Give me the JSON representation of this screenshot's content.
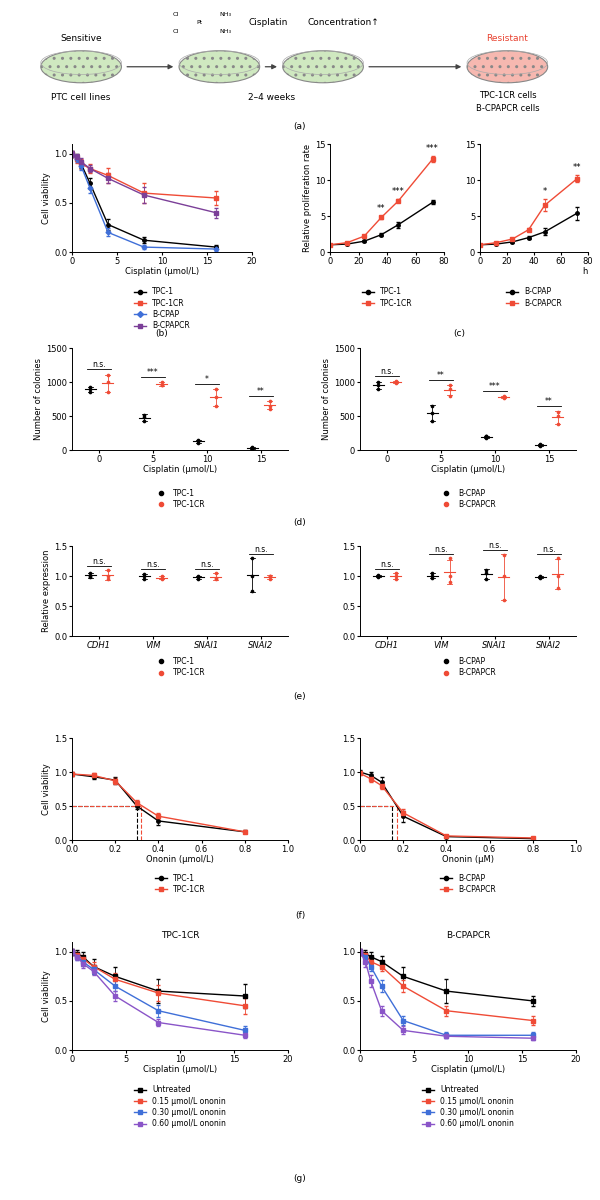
{
  "panel_labels": [
    "(a)",
    "(b)",
    "(c)",
    "(d)",
    "(e)",
    "(f)",
    "(g)"
  ],
  "diagram": {
    "sensitive": "Sensitive",
    "source": "PTC cell lines",
    "drug_atoms": [
      "Cl",
      "Cl",
      "Pt",
      "NH₃",
      "NH₃"
    ],
    "drug": "Cisplatin",
    "dose": "Concentration↑",
    "duration": "2–4 weeks",
    "resistant": "Resistant",
    "resistant_lines": [
      "TPC-1CR cells",
      "B-CPAPCR cells"
    ]
  },
  "chart_data": [
    {
      "type": "line",
      "xlabel": "Cisplatin (μmol/L)",
      "ylabel": "Cell viability",
      "x": [
        0,
        0.5,
        1,
        2,
        4,
        8,
        16
      ],
      "xlim": [
        0,
        20
      ],
      "xticks": [
        0,
        5,
        10,
        15,
        20
      ],
      "ylim": [
        0,
        1.1
      ],
      "yticks": [
        {
          "value": 0,
          "label": "0.0"
        },
        {
          "value": 0.5,
          "label": "0.5"
        },
        {
          "value": 1,
          "label": "1.0"
        }
      ],
      "legend": "below",
      "series": [
        {
          "name": "TPC-1",
          "color": "#000000",
          "marker": "circle",
          "values": [
            1.0,
            0.97,
            0.9,
            0.7,
            0.28,
            0.12,
            0.05
          ],
          "errors": [
            0.03,
            0.03,
            0.04,
            0.05,
            0.06,
            0.03,
            0.02
          ]
        },
        {
          "name": "TPC-1CR",
          "color": "#ef4b36",
          "marker": "square",
          "values": [
            1.0,
            0.95,
            0.9,
            0.85,
            0.78,
            0.6,
            0.55
          ],
          "errors": [
            0.03,
            0.04,
            0.05,
            0.05,
            0.08,
            0.1,
            0.07
          ]
        },
        {
          "name": "B-CPAP",
          "color": "#3f6fd8",
          "marker": "diamond",
          "values": [
            1.0,
            0.95,
            0.88,
            0.65,
            0.2,
            0.05,
            0.03
          ],
          "errors": [
            0.03,
            0.03,
            0.04,
            0.05,
            0.04,
            0.02,
            0.02
          ]
        },
        {
          "name": "B-CPAPCR",
          "color": "#7b3f98",
          "marker": "square",
          "values": [
            1.0,
            0.97,
            0.92,
            0.85,
            0.75,
            0.58,
            0.4
          ],
          "errors": [
            0.03,
            0.03,
            0.04,
            0.04,
            0.05,
            0.08,
            0.05
          ]
        }
      ]
    },
    {
      "type": "line",
      "ylabel": "Relative proliferation rate",
      "x": [
        0,
        12,
        24,
        36,
        48,
        72
      ],
      "xlim": [
        0,
        80
      ],
      "xticks": [
        0,
        20,
        40,
        60,
        80
      ],
      "ylim": [
        0,
        15
      ],
      "yticks": [
        0,
        5,
        10,
        15
      ],
      "legend": "below",
      "series": [
        {
          "name": "TPC-1",
          "color": "#000000",
          "marker": "circle",
          "values": [
            1.0,
            1.1,
            1.5,
            2.4,
            3.8,
            6.9
          ],
          "errors": [
            0.05,
            0.1,
            0.15,
            0.2,
            0.4,
            0.3
          ]
        },
        {
          "name": "TPC-1CR",
          "color": "#ef4b36",
          "marker": "square",
          "values": [
            1.0,
            1.3,
            2.2,
            4.8,
            7.1,
            12.9
          ],
          "errors": [
            0.05,
            0.1,
            0.15,
            0.2,
            0.2,
            0.4
          ]
        }
      ],
      "annotations": [
        {
          "x": 36,
          "text": "**"
        },
        {
          "x": 48,
          "text": "***"
        },
        {
          "x": 72,
          "text": "***"
        }
      ]
    },
    {
      "type": "line",
      "xlabel": "h",
      "x": [
        0,
        12,
        24,
        36,
        48,
        72
      ],
      "xlim": [
        0,
        80
      ],
      "xticks": [
        0,
        20,
        40,
        60,
        80
      ],
      "ylim": [
        0,
        15
      ],
      "yticks": [
        0,
        5,
        10,
        15
      ],
      "legend": "below",
      "series": [
        {
          "name": "B-CPAP",
          "color": "#000000",
          "marker": "circle",
          "values": [
            1.0,
            1.1,
            1.4,
            2.0,
            2.8,
            5.4
          ],
          "errors": [
            0.05,
            0.1,
            0.15,
            0.2,
            0.5,
            0.9
          ]
        },
        {
          "name": "B-CPAPCR",
          "color": "#ef4b36",
          "marker": "square",
          "values": [
            1.0,
            1.3,
            1.8,
            3.1,
            6.5,
            10.2
          ],
          "errors": [
            0.05,
            0.1,
            0.15,
            0.2,
            0.8,
            0.5
          ]
        }
      ],
      "annotations": [
        {
          "x": 48,
          "text": "*"
        },
        {
          "x": 72,
          "text": "**"
        }
      ]
    },
    {
      "type": "dot",
      "xlabel": "Cisplatin (μmol/L)",
      "ylabel": "Number of colonies",
      "categories": [
        "0",
        "5",
        "10",
        "15"
      ],
      "ylim": [
        0,
        1500
      ],
      "yticks": [
        0,
        500,
        1000,
        1500
      ],
      "legend": "below",
      "significance": [
        "n.s.",
        "***",
        "*",
        "**"
      ],
      "series": [
        {
          "name": "TPC-1",
          "color": "#000000",
          "points": [
            [
              850,
              920,
              900
            ],
            [
              420,
              520,
              480
            ],
            [
              100,
              130,
              150
            ],
            [
              20,
              40,
              30
            ]
          ]
        },
        {
          "name": "TPC-1CR",
          "color": "#ef4b36",
          "points": [
            [
              1000,
              850,
              1100
            ],
            [
              950,
              1000,
              960
            ],
            [
              650,
              780,
              900
            ],
            [
              600,
              650,
              720
            ]
          ]
        }
      ]
    },
    {
      "type": "dot",
      "xlabel": "Cisplatin (μmol/L)",
      "ylabel": "Number of colonies",
      "categories": [
        "0",
        "5",
        "10",
        "15"
      ],
      "ylim": [
        0,
        1500
      ],
      "yticks": [
        0,
        500,
        1000,
        1500
      ],
      "legend": "below",
      "significance": [
        "n.s.",
        "**",
        "***",
        "**"
      ],
      "series": [
        {
          "name": "B-CPAP",
          "color": "#000000",
          "points": [
            [
              1000,
              900,
              950
            ],
            [
              420,
              550,
              650
            ],
            [
              180,
              200,
              210
            ],
            [
              60,
              90,
              80
            ]
          ]
        },
        {
          "name": "B-CPAPCR",
          "color": "#ef4b36",
          "points": [
            [
              980,
              1000,
              1010
            ],
            [
              800,
              900,
              950
            ],
            [
              780,
              790,
              770
            ],
            [
              380,
              500,
              560
            ]
          ]
        }
      ]
    },
    {
      "type": "dot",
      "ylabel": "Relative expression",
      "categories": [
        "CDH1",
        "VIM",
        "SNAI1",
        "SNAI2"
      ],
      "ylim": [
        0,
        1.5
      ],
      "yticks": [
        {
          "value": 0,
          "label": "0.0"
        },
        {
          "value": 0.5,
          "label": "0.5"
        },
        {
          "value": 1,
          "label": "1.0"
        },
        {
          "value": 1.5,
          "label": "1.5"
        }
      ],
      "legend": "below",
      "significance": [
        "n.s.",
        "n.s.",
        "n.s.",
        "n.s."
      ],
      "series": [
        {
          "name": "TPC-1",
          "color": "#000000",
          "points": [
            [
              0.98,
              1.0,
              1.05
            ],
            [
              1.0,
              0.95,
              1.03
            ],
            [
              0.95,
              1.0,
              0.98
            ],
            [
              0.75,
              1.0,
              1.3
            ]
          ]
        },
        {
          "name": "TPC-1CR",
          "color": "#ef4b36",
          "points": [
            [
              0.95,
              1.0,
              1.1
            ],
            [
              0.97,
              0.95,
              1.0
            ],
            [
              0.97,
              1.05,
              0.95
            ],
            [
              0.95,
              1.0,
              1.0
            ]
          ]
        }
      ]
    },
    {
      "type": "dot",
      "categories": [
        "CDH1",
        "VIM",
        "SNAI1",
        "SNAI2"
      ],
      "ylim": [
        0,
        1.5
      ],
      "yticks": [
        {
          "value": 0,
          "label": "0.0"
        },
        {
          "value": 0.5,
          "label": "0.5"
        },
        {
          "value": 1,
          "label": "1.0"
        },
        {
          "value": 1.5,
          "label": "1.5"
        }
      ],
      "legend": "below",
      "significance": [
        "n.s.",
        "n.s.",
        "n.s.",
        "n.s."
      ],
      "series": [
        {
          "name": "B-CPAP",
          "color": "#000000",
          "points": [
            [
              1.0,
              1.02,
              0.99
            ],
            [
              1.0,
              1.05,
              0.97
            ],
            [
              1.1,
              0.95,
              1.05
            ],
            [
              0.97,
              1.0,
              0.99
            ]
          ]
        },
        {
          "name": "B-CPAPCR",
          "color": "#ef4b36",
          "points": [
            [
              0.95,
              1.05,
              1.0
            ],
            [
              1.0,
              1.3,
              0.9
            ],
            [
              1.35,
              0.6,
              1.0
            ],
            [
              0.8,
              1.3,
              1.0
            ]
          ]
        }
      ]
    },
    {
      "type": "line",
      "xlabel": "Ononin (μmol/L)",
      "ylabel": "Cell viability",
      "x": [
        0,
        0.1,
        0.2,
        0.3,
        0.4,
        0.8
      ],
      "xlim": [
        0,
        1.0
      ],
      "xticks": [
        {
          "value": 0,
          "label": "0.0"
        },
        0.2,
        0.4,
        0.6,
        0.8,
        {
          "value": 1,
          "label": "1.0"
        }
      ],
      "ylim": [
        0,
        1.5
      ],
      "yticks": [
        {
          "value": 0,
          "label": "0.0"
        },
        {
          "value": 0.5,
          "label": "0.5"
        },
        {
          "value": 1,
          "label": "1.0"
        },
        {
          "value": 1.5,
          "label": "1.5"
        }
      ],
      "legend": "below",
      "reference_y": 0.5,
      "series": [
        {
          "name": "TPC-1",
          "color": "#000000",
          "marker": "circle",
          "values": [
            0.97,
            0.93,
            0.88,
            0.5,
            0.28,
            0.12
          ],
          "errors": [
            0.03,
            0.03,
            0.05,
            0.04,
            0.06,
            0.02
          ],
          "ic50": 0.3
        },
        {
          "name": "TPC-1CR",
          "color": "#ef4b36",
          "marker": "square",
          "values": [
            0.97,
            0.95,
            0.87,
            0.55,
            0.35,
            0.12
          ],
          "errors": [
            0.03,
            0.03,
            0.04,
            0.04,
            0.04,
            0.02
          ],
          "ic50": 0.32
        }
      ]
    },
    {
      "type": "line",
      "xlabel": "Ononin (μM)",
      "x": [
        0,
        0.05,
        0.1,
        0.2,
        0.4,
        0.8
      ],
      "xlim": [
        0,
        1.0
      ],
      "xticks": [
        {
          "value": 0,
          "label": "0.0"
        },
        0.2,
        0.4,
        0.6,
        0.8,
        {
          "value": 1,
          "label": "1.0"
        }
      ],
      "ylim": [
        0,
        1.5
      ],
      "yticks": [
        {
          "value": 0,
          "label": "0.0"
        },
        {
          "value": 0.5,
          "label": "0.5"
        },
        {
          "value": 1,
          "label": "1.0"
        },
        {
          "value": 1.5,
          "label": "1.5"
        }
      ],
      "legend": "below",
      "reference_y": 0.5,
      "series": [
        {
          "name": "B-CPAP",
          "color": "#000000",
          "marker": "circle",
          "values": [
            1.0,
            0.95,
            0.85,
            0.35,
            0.05,
            0.02
          ],
          "errors": [
            0.03,
            0.05,
            0.08,
            0.08,
            0.02,
            0.01
          ],
          "ic50": 0.15
        },
        {
          "name": "B-CPAPCR",
          "color": "#ef4b36",
          "marker": "square",
          "values": [
            0.98,
            0.9,
            0.8,
            0.4,
            0.06,
            0.03
          ],
          "errors": [
            0.03,
            0.04,
            0.05,
            0.06,
            0.02,
            0.01
          ],
          "ic50": 0.17
        }
      ]
    },
    {
      "type": "line",
      "title": "TPC-1CR",
      "xlabel": "Cisplatin (μmol/L)",
      "ylabel": "Cell viability",
      "x": [
        0,
        0.5,
        1,
        2,
        4,
        8,
        16
      ],
      "xlim": [
        0,
        20
      ],
      "xticks": [
        0,
        5,
        10,
        15,
        20
      ],
      "ylim": [
        0,
        1.1
      ],
      "yticks": [
        {
          "value": 0,
          "label": "0.0"
        },
        {
          "value": 0.5,
          "label": "0.5"
        },
        {
          "value": 1,
          "label": "1.0"
        }
      ],
      "legend": "below",
      "series": [
        {
          "name": "Untreated",
          "color": "#000000",
          "marker": "square",
          "values": [
            1.0,
            0.98,
            0.95,
            0.85,
            0.75,
            0.6,
            0.55
          ],
          "errors": [
            0.03,
            0.04,
            0.05,
            0.08,
            0.1,
            0.12,
            0.12
          ]
        },
        {
          "name": "0.15 μmol/L ononin",
          "color": "#ef4b36",
          "marker": "square",
          "values": [
            1.0,
            0.97,
            0.93,
            0.85,
            0.72,
            0.58,
            0.45
          ],
          "errors": [
            0.03,
            0.03,
            0.04,
            0.05,
            0.06,
            0.08,
            0.08
          ]
        },
        {
          "name": "0.30 μmol/L ononin",
          "color": "#3f6fd8",
          "marker": "square",
          "values": [
            1.0,
            0.95,
            0.9,
            0.82,
            0.65,
            0.4,
            0.2
          ],
          "errors": [
            0.03,
            0.03,
            0.04,
            0.05,
            0.05,
            0.06,
            0.04
          ]
        },
        {
          "name": "0.60 μmol/L ononin",
          "color": "#8a55c8",
          "marker": "square",
          "values": [
            1.0,
            0.95,
            0.88,
            0.8,
            0.55,
            0.28,
            0.15
          ],
          "errors": [
            0.03,
            0.03,
            0.04,
            0.04,
            0.05,
            0.04,
            0.03
          ]
        }
      ]
    },
    {
      "type": "line",
      "title": "B-CPAPCR",
      "xlabel": "Cisplatin (μmol/L)",
      "x": [
        0,
        0.5,
        1,
        2,
        4,
        8,
        16
      ],
      "xlim": [
        0,
        20
      ],
      "xticks": [
        0,
        5,
        10,
        15,
        20
      ],
      "ylim": [
        0,
        1.1
      ],
      "yticks": [
        {
          "value": 0,
          "label": "0.0"
        },
        {
          "value": 0.5,
          "label": "0.5"
        },
        {
          "value": 1,
          "label": "1.0"
        }
      ],
      "legend": "below",
      "series": [
        {
          "name": "Untreated",
          "color": "#000000",
          "marker": "square",
          "values": [
            1.0,
            0.98,
            0.95,
            0.9,
            0.75,
            0.6,
            0.5
          ],
          "errors": [
            0.03,
            0.04,
            0.05,
            0.06,
            0.1,
            0.12,
            0.05
          ]
        },
        {
          "name": "0.15 μmol/L ononin",
          "color": "#ef4b36",
          "marker": "square",
          "values": [
            1.0,
            0.97,
            0.9,
            0.85,
            0.65,
            0.4,
            0.3
          ],
          "errors": [
            0.03,
            0.03,
            0.04,
            0.05,
            0.06,
            0.05,
            0.05
          ]
        },
        {
          "name": "0.30 μmol/L ononin",
          "color": "#3f6fd8",
          "marker": "square",
          "values": [
            1.0,
            0.95,
            0.85,
            0.65,
            0.3,
            0.15,
            0.15
          ],
          "errors": [
            0.03,
            0.03,
            0.05,
            0.06,
            0.05,
            0.03,
            0.03
          ]
        },
        {
          "name": "0.60 μmol/L ononin",
          "color": "#8a55c8",
          "marker": "square",
          "values": [
            1.0,
            0.9,
            0.7,
            0.4,
            0.2,
            0.14,
            0.12
          ],
          "errors": [
            0.03,
            0.05,
            0.06,
            0.05,
            0.04,
            0.02,
            0.02
          ]
        }
      ]
    }
  ]
}
